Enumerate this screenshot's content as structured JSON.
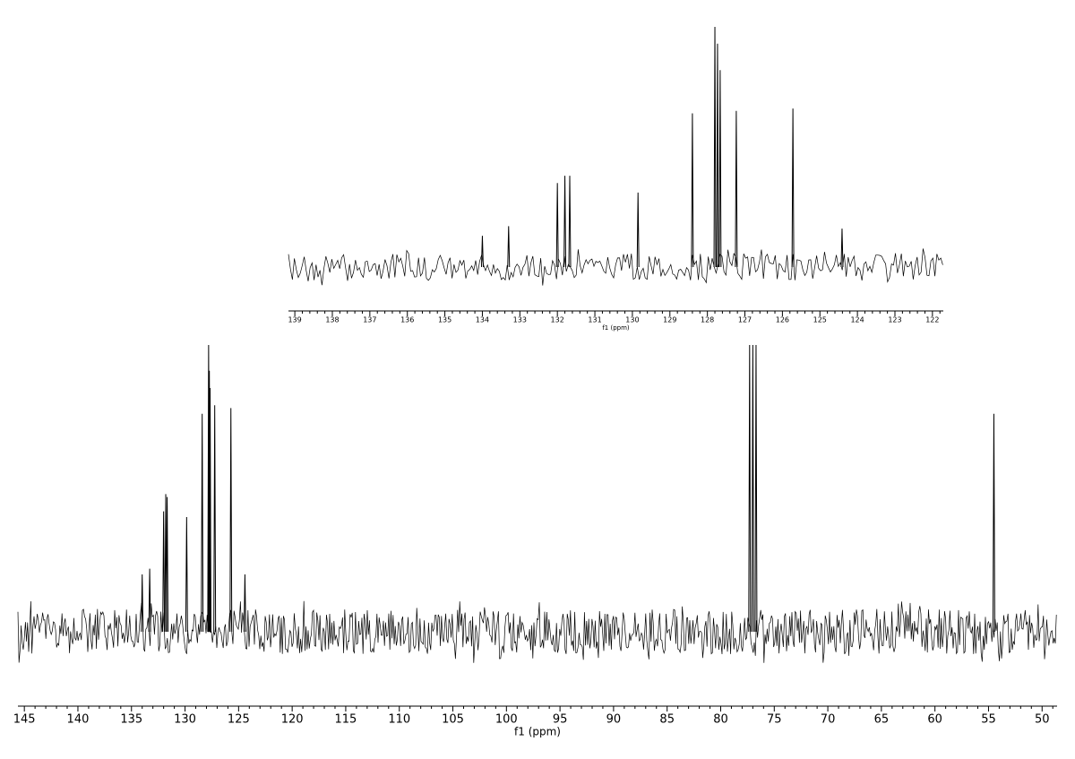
{
  "chart_data": [
    {
      "type": "stick",
      "x_label": "f1 (ppm)",
      "color": "#000000",
      "xlim": [
        145.6,
        48.6
      ],
      "xticks": [
        145,
        140,
        135,
        130,
        125,
        120,
        115,
        110,
        105,
        100,
        95,
        90,
        85,
        80,
        75,
        70,
        65,
        60,
        55,
        50
      ],
      "ylim": [
        0,
        100
      ],
      "x": [
        134.0,
        133.3,
        132.0,
        131.8,
        131.67,
        129.85,
        128.4,
        127.8,
        127.73,
        127.66,
        127.23,
        125.72,
        124.41,
        77.3,
        77.0,
        76.7,
        54.5
      ],
      "values": [
        20,
        22,
        42,
        48,
        47,
        40,
        76,
        100,
        91,
        85,
        79,
        78,
        20,
        100,
        100,
        100,
        76
      ]
    },
    {
      "type": "stick",
      "x_label": "f1 (ppm)",
      "color": "#000000",
      "xlim": [
        139.17,
        121.71
      ],
      "xticks": [
        139,
        138,
        137,
        136,
        135,
        134,
        133,
        132,
        131,
        130,
        129,
        128,
        127,
        126,
        125,
        124,
        123,
        122
      ],
      "ylim": [
        0,
        100
      ],
      "x": [
        134.0,
        133.3,
        132.0,
        131.8,
        131.67,
        129.85,
        128.4,
        127.8,
        127.73,
        127.66,
        127.23,
        125.72,
        124.41
      ],
      "values": [
        13,
        17,
        35,
        38,
        38,
        31,
        64,
        100,
        93,
        82,
        65,
        66,
        16
      ]
    }
  ]
}
